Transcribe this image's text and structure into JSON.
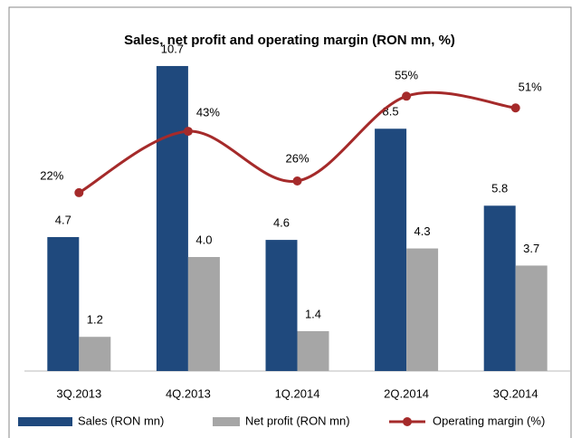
{
  "chart_data": {
    "type": "bar-line",
    "title": "Sales, net profit and operating margin (RON mn, %)",
    "categories": [
      "3Q.2013",
      "4Q.2013",
      "1Q.2014",
      "2Q.2014",
      "3Q.2014"
    ],
    "series": [
      {
        "name": "Sales (RON mn)",
        "color": "#1f497d",
        "type": "bar",
        "values": [
          4.7,
          10.7,
          4.6,
          8.5,
          5.8
        ]
      },
      {
        "name": "Net profit (RON mn)",
        "color": "#a6a6a6",
        "type": "bar",
        "values": [
          1.2,
          4.0,
          1.4,
          4.3,
          3.7
        ],
        "value_labels": [
          "1.2",
          "4.0",
          "1.4",
          "4.3",
          "3.7"
        ]
      },
      {
        "name": "Operating margin (%)",
        "color": "#a52a2a",
        "type": "line",
        "axis": "y2",
        "values": [
          22,
          43,
          26,
          55,
          51
        ],
        "value_labels": [
          "22%",
          "43%",
          "26%",
          "55%",
          "51%"
        ]
      }
    ],
    "ylim": [
      0,
      12
    ],
    "y2lim": [
      -39,
      78
    ],
    "legend": "bottom"
  }
}
